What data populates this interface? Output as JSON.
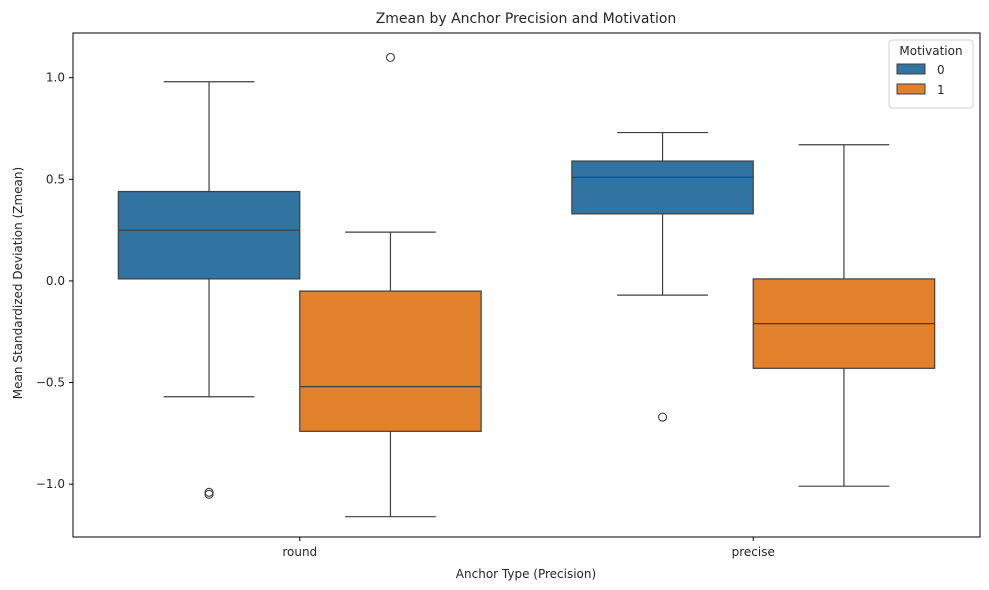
{
  "chart_data": {
    "type": "box",
    "title": "Zmean by Anchor Precision and Motivation",
    "xlabel": "Anchor Type (Precision)",
    "ylabel": "Mean Standardized Deviation (Zmean)",
    "categories": [
      "round",
      "precise"
    ],
    "ylim": [
      -1.26,
      1.22
    ],
    "yticks": [
      1.0,
      0.5,
      0.0,
      -0.5,
      -1.0
    ],
    "ytick_labels": [
      "1.0",
      "0.5",
      "0.0",
      "−0.5",
      "−1.0"
    ],
    "grid": false,
    "legend": {
      "title": "Motivation",
      "position": "top-right"
    },
    "series": [
      {
        "name": "0",
        "color": "#3274a1",
        "boxes": [
          {
            "category": "round",
            "whisker_low": -0.57,
            "q1": 0.01,
            "median": 0.25,
            "q3": 0.44,
            "whisker_high": 0.98,
            "outliers": [
              -1.04,
              -1.05
            ]
          },
          {
            "category": "precise",
            "whisker_low": -0.07,
            "q1": 0.33,
            "median": 0.51,
            "q3": 0.59,
            "whisker_high": 0.73,
            "outliers": [
              -0.67
            ]
          }
        ]
      },
      {
        "name": "1",
        "color": "#e1812c",
        "boxes": [
          {
            "category": "round",
            "whisker_low": -1.16,
            "q1": -0.74,
            "median": -0.52,
            "q3": -0.05,
            "whisker_high": 0.24,
            "outliers": [
              1.1
            ]
          },
          {
            "category": "precise",
            "whisker_low": -1.01,
            "q1": -0.43,
            "median": -0.21,
            "q3": 0.01,
            "whisker_high": 0.67,
            "outliers": []
          }
        ]
      }
    ]
  }
}
